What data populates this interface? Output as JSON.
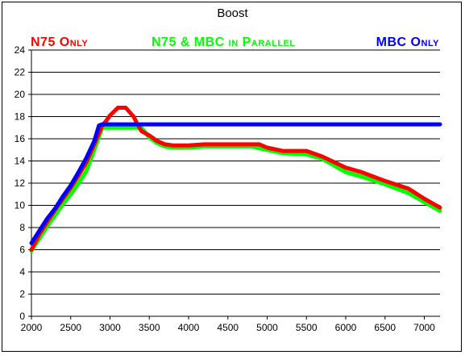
{
  "chart_data": {
    "type": "line",
    "title": "Boost",
    "xlabel": "",
    "ylabel": "",
    "xlim": [
      2000,
      7200
    ],
    "ylim": [
      0,
      24
    ],
    "x_ticks": [
      2000,
      2500,
      3000,
      3500,
      4000,
      4500,
      5000,
      5500,
      6000,
      6500,
      7000
    ],
    "y_ticks": [
      0,
      2,
      4,
      6,
      8,
      10,
      12,
      14,
      16,
      18,
      20,
      22,
      24
    ],
    "grid": "horizontal",
    "legend": "top",
    "series": [
      {
        "name": "N75 Only",
        "color": "#ff0000",
        "x": [
          2000,
          2100,
          2200,
          2300,
          2400,
          2500,
          2600,
          2700,
          2800,
          2900,
          2950,
          3000,
          3100,
          3200,
          3300,
          3350,
          3400,
          3500,
          3600,
          3700,
          3800,
          4000,
          4200,
          4400,
          4600,
          4800,
          4900,
          5000,
          5200,
          5500,
          5700,
          6000,
          6200,
          6500,
          6800,
          7000,
          7200
        ],
        "y": [
          6.0,
          7.4,
          8.5,
          9.6,
          10.6,
          11.6,
          12.7,
          13.9,
          15.5,
          17.2,
          17.6,
          18.1,
          18.8,
          18.8,
          18.0,
          17.3,
          16.7,
          16.3,
          15.8,
          15.5,
          15.4,
          15.4,
          15.5,
          15.5,
          15.5,
          15.5,
          15.5,
          15.2,
          14.9,
          14.9,
          14.4,
          13.4,
          13.0,
          12.2,
          11.5,
          10.6,
          9.8
        ]
      },
      {
        "name": "N75 & MBC in Parallel",
        "color": "#00ff00",
        "x": [
          2000,
          2100,
          2200,
          2300,
          2400,
          2500,
          2600,
          2700,
          2800,
          2900,
          3000,
          3200,
          3400,
          3500,
          3600,
          3700,
          3800,
          4000,
          4200,
          4500,
          4800,
          5000,
          5200,
          5500,
          5700,
          6000,
          6200,
          6500,
          6800,
          7000,
          7200
        ],
        "y": [
          5.9,
          7.0,
          8.1,
          9.1,
          10.1,
          11.0,
          12.0,
          13.1,
          15.0,
          17.0,
          17.0,
          17.0,
          17.0,
          16.1,
          15.6,
          15.3,
          15.2,
          15.2,
          15.3,
          15.3,
          15.3,
          15.0,
          14.7,
          14.6,
          14.2,
          13.0,
          12.6,
          11.9,
          11.1,
          10.3,
          9.5
        ]
      },
      {
        "name": "MBC Only",
        "color": "#0000ff",
        "x": [
          2000,
          2100,
          2200,
          2300,
          2400,
          2500,
          2600,
          2700,
          2800,
          2860,
          2900,
          3500,
          4000,
          5000,
          6000,
          7000,
          7200
        ],
        "y": [
          6.6,
          7.7,
          8.8,
          9.7,
          10.8,
          11.8,
          13.0,
          14.3,
          15.8,
          17.2,
          17.3,
          17.3,
          17.3,
          17.3,
          17.3,
          17.3,
          17.3
        ]
      }
    ]
  }
}
